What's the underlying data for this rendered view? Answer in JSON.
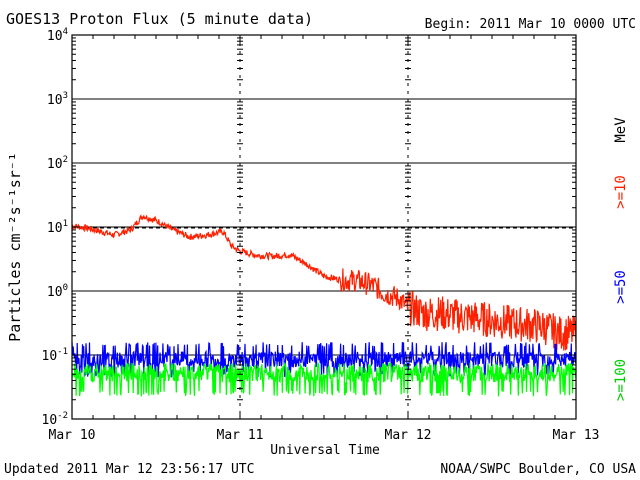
{
  "chart_data": {
    "type": "line",
    "title": "GOES13 Proton Flux (5 minute data)",
    "begin_label": "Begin: 2011 Mar 10 0000 UTC",
    "ylabel": "Particles cm⁻²s⁻¹sr⁻¹",
    "xlabel": "Universal Time",
    "y_scale": "log",
    "ylim": [
      0.01,
      10000
    ],
    "y_ticks": [
      {
        "base": "10",
        "exp": "4"
      },
      {
        "base": "10",
        "exp": "3"
      },
      {
        "base": "10",
        "exp": "2"
      },
      {
        "base": "10",
        "exp": "1"
      },
      {
        "base": "10",
        "exp": "0"
      },
      {
        "base": "10",
        "exp": "-1"
      },
      {
        "base": "10",
        "exp": "-2"
      }
    ],
    "x_ticks": [
      "Mar 10",
      "Mar 11",
      "Mar 12",
      "Mar 13"
    ],
    "xlim_days": [
      0,
      3
    ],
    "grid": true,
    "unit_label": "MeV",
    "series": [
      {
        "name": ">=10",
        "color": "#ff2000",
        "x_days": [
          0.0,
          0.1,
          0.25,
          0.35,
          0.42,
          0.45,
          0.52,
          0.6,
          0.7,
          0.8,
          0.9,
          0.95,
          1.0,
          1.1,
          1.2,
          1.3,
          1.4,
          1.5,
          1.6,
          1.7,
          1.8,
          1.85,
          1.9,
          1.95,
          2.0,
          2.1,
          2.2,
          2.3,
          2.4,
          2.5,
          2.6,
          2.7,
          2.8,
          2.9,
          3.0
        ],
        "values": [
          10.5,
          9.5,
          7.5,
          9.0,
          15.0,
          14.0,
          12.0,
          9.0,
          7.0,
          7.5,
          8.5,
          5.0,
          4.2,
          3.6,
          3.5,
          3.7,
          2.6,
          1.7,
          1.5,
          1.45,
          1.2,
          0.95,
          0.85,
          0.75,
          0.55,
          0.45,
          0.45,
          0.4,
          0.38,
          0.35,
          0.32,
          0.3,
          0.28,
          0.22,
          0.22
        ]
      },
      {
        "name": ">=50",
        "color": "#0000ff",
        "level": 0.085,
        "low": 0.05,
        "high": 0.16
      },
      {
        "name": ">=100",
        "color": "#00ff00",
        "level": 0.05,
        "low": 0.025,
        "high": 0.075
      }
    ]
  },
  "footer": {
    "updated": "Updated 2011 Mar 12 23:56:17 UTC",
    "credit": "NOAA/SWPC Boulder, CO USA"
  }
}
